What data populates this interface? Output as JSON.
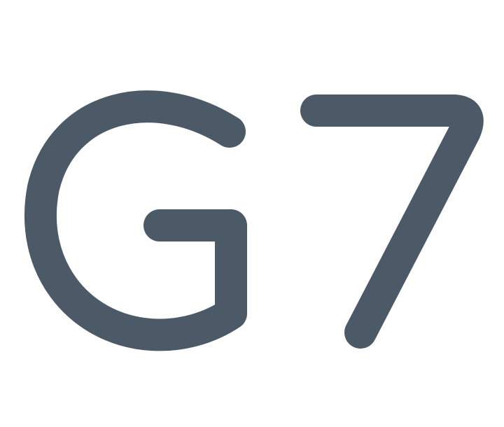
{
  "logo": {
    "text": "G7",
    "color": "#4c5a67",
    "background": "#ffffff"
  }
}
